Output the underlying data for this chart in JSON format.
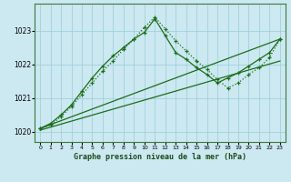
{
  "title": "Graphe pression niveau de la mer (hPa)",
  "background_color": "#cce8f0",
  "grid_color": "#99ccdd",
  "line_color": "#1a6e1a",
  "xlim": [
    -0.5,
    23.5
  ],
  "ylim": [
    1019.7,
    1023.8
  ],
  "yticks": [
    1020,
    1021,
    1022,
    1023
  ],
  "xticks": [
    0,
    1,
    2,
    3,
    4,
    5,
    6,
    7,
    8,
    9,
    10,
    11,
    12,
    13,
    14,
    15,
    16,
    17,
    18,
    19,
    20,
    21,
    22,
    23
  ],
  "line1_straight": {
    "x": [
      0,
      23
    ],
    "y": [
      1020.1,
      1022.75
    ]
  },
  "line2_straight": {
    "x": [
      0,
      23
    ],
    "y": [
      1020.05,
      1022.1
    ]
  },
  "line3_dotted_marker": {
    "x": [
      0,
      1,
      2,
      3,
      4,
      5,
      6,
      7,
      8,
      9,
      10,
      11,
      12,
      13,
      14,
      15,
      16,
      17,
      18,
      19,
      20,
      21,
      22,
      23
    ],
    "y": [
      1020.1,
      1020.2,
      1020.45,
      1020.75,
      1021.1,
      1021.45,
      1021.8,
      1022.1,
      1022.45,
      1022.75,
      1023.1,
      1023.4,
      1023.05,
      1022.7,
      1022.4,
      1022.1,
      1021.85,
      1021.55,
      1021.3,
      1021.45,
      1021.7,
      1021.9,
      1022.2,
      1022.75
    ]
  },
  "line4_solid_marker": {
    "x": [
      0,
      1,
      2,
      3,
      4,
      5,
      6,
      7,
      8,
      9,
      10,
      11,
      12,
      13,
      14,
      15,
      16,
      17,
      18,
      19,
      20,
      21,
      22,
      23
    ],
    "y": [
      1020.1,
      1020.25,
      1020.5,
      1020.8,
      1021.2,
      1021.6,
      1021.95,
      1022.25,
      1022.5,
      1022.75,
      1022.95,
      1023.35,
      1022.85,
      1022.35,
      1022.15,
      1021.9,
      1021.7,
      1021.45,
      1021.6,
      1021.75,
      1021.95,
      1022.15,
      1022.35,
      1022.75
    ]
  }
}
